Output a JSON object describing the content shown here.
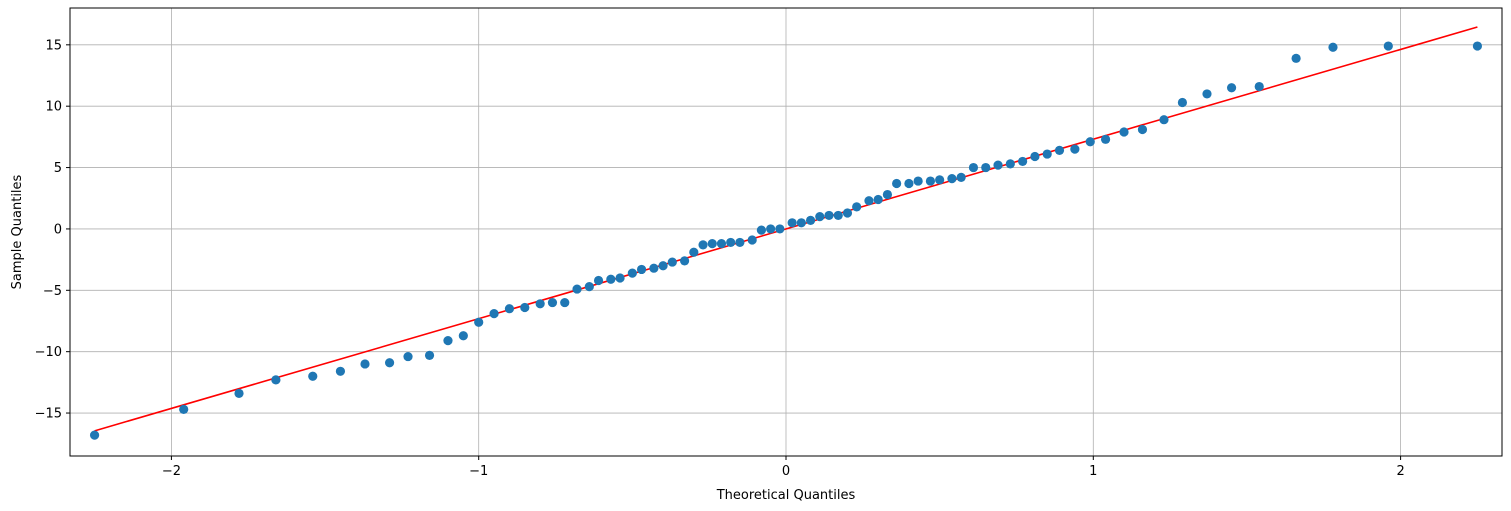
{
  "chart_data": {
    "type": "scatter",
    "title": "",
    "xlabel": "Theoretical Quantiles",
    "ylabel": "Sample Quantiles",
    "xlim": [
      -2.33,
      2.33
    ],
    "ylim": [
      -18.5,
      18
    ],
    "xticks": [
      -2,
      -1,
      0,
      1,
      2
    ],
    "xtick_labels": [
      "−2",
      "−1",
      "0",
      "1",
      "2"
    ],
    "yticks": [
      -15,
      -10,
      -5,
      0,
      5,
      10,
      15
    ],
    "ytick_labels": [
      "−15",
      "−10",
      "−5",
      "0",
      "5",
      "10",
      "15"
    ],
    "grid": true,
    "colors": {
      "points": "#1f77b4",
      "line": "#ff0000",
      "grid": "#b0b0b0"
    },
    "series": [
      {
        "points": [
          [
            -2.25,
            -16.8
          ],
          [
            -1.96,
            -14.7
          ],
          [
            -1.78,
            -13.4
          ],
          [
            -1.66,
            -12.3
          ],
          [
            -1.54,
            -12.0
          ],
          [
            -1.45,
            -11.6
          ],
          [
            -1.37,
            -11.0
          ],
          [
            -1.29,
            -10.9
          ],
          [
            -1.23,
            -10.4
          ],
          [
            -1.16,
            -10.3
          ],
          [
            -1.1,
            -9.1
          ],
          [
            -1.05,
            -8.7
          ],
          [
            -1.0,
            -7.6
          ],
          [
            -0.95,
            -6.9
          ],
          [
            -0.9,
            -6.5
          ],
          [
            -0.85,
            -6.4
          ],
          [
            -0.8,
            -6.1
          ],
          [
            -0.76,
            -6.0
          ],
          [
            -0.72,
            -6.0
          ],
          [
            -0.68,
            -4.9
          ],
          [
            -0.64,
            -4.7
          ],
          [
            -0.61,
            -4.2
          ],
          [
            -0.57,
            -4.1
          ],
          [
            -0.54,
            -4.0
          ],
          [
            -0.5,
            -3.6
          ],
          [
            -0.47,
            -3.3
          ],
          [
            -0.43,
            -3.2
          ],
          [
            -0.4,
            -3.0
          ],
          [
            -0.37,
            -2.7
          ],
          [
            -0.33,
            -2.6
          ],
          [
            -0.3,
            -1.9
          ],
          [
            -0.27,
            -1.3
          ],
          [
            -0.24,
            -1.2
          ],
          [
            -0.21,
            -1.2
          ],
          [
            -0.18,
            -1.1
          ],
          [
            -0.15,
            -1.1
          ],
          [
            -0.11,
            -0.9
          ],
          [
            -0.08,
            -0.1
          ],
          [
            -0.05,
            0.0
          ],
          [
            -0.02,
            0.0
          ],
          [
            0.02,
            0.5
          ],
          [
            0.05,
            0.5
          ],
          [
            0.08,
            0.7
          ],
          [
            0.11,
            1.0
          ],
          [
            0.14,
            1.1
          ],
          [
            0.17,
            1.1
          ],
          [
            0.2,
            1.3
          ],
          [
            0.23,
            1.8
          ],
          [
            0.27,
            2.3
          ],
          [
            0.3,
            2.4
          ],
          [
            0.33,
            2.8
          ],
          [
            0.36,
            3.7
          ],
          [
            0.4,
            3.7
          ],
          [
            0.43,
            3.9
          ],
          [
            0.47,
            3.9
          ],
          [
            0.5,
            4.0
          ],
          [
            0.54,
            4.1
          ],
          [
            0.57,
            4.2
          ],
          [
            0.61,
            5.0
          ],
          [
            0.65,
            5.0
          ],
          [
            0.69,
            5.2
          ],
          [
            0.73,
            5.3
          ],
          [
            0.77,
            5.5
          ],
          [
            0.81,
            5.9
          ],
          [
            0.85,
            6.1
          ],
          [
            0.89,
            6.4
          ],
          [
            0.94,
            6.5
          ],
          [
            0.99,
            7.1
          ],
          [
            1.04,
            7.3
          ],
          [
            1.1,
            7.9
          ],
          [
            1.16,
            8.1
          ],
          [
            1.23,
            8.9
          ],
          [
            1.29,
            10.3
          ],
          [
            1.37,
            11.0
          ],
          [
            1.45,
            11.5
          ],
          [
            1.54,
            11.6
          ],
          [
            1.66,
            13.9
          ],
          [
            1.78,
            14.8
          ],
          [
            1.96,
            14.9
          ],
          [
            2.25,
            14.9
          ]
        ]
      }
    ],
    "reference_line": {
      "x": [
        -2.25,
        2.25
      ],
      "y": [
        -16.45,
        16.45
      ]
    }
  }
}
